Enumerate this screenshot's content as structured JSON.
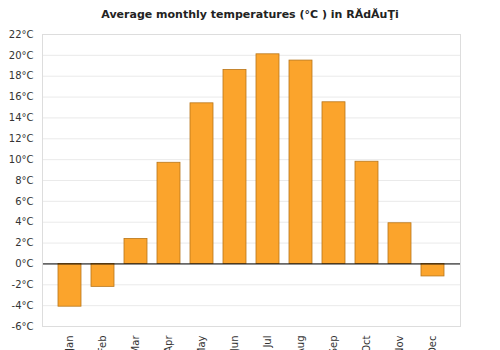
{
  "chart_data": {
    "type": "bar",
    "title": "Average monthly temperatures (°C ) in RĂdĂuŢi",
    "categories": [
      "Jan",
      "Feb",
      "Mar",
      "Apr",
      "May",
      "Jun",
      "Jul",
      "Aug",
      "Sep",
      "Oct",
      "Nov",
      "Dec"
    ],
    "values": [
      -4.1,
      -2.2,
      2.4,
      9.7,
      15.4,
      18.6,
      20.1,
      19.5,
      15.5,
      9.8,
      3.9,
      -1.2
    ],
    "color": "#fba42c",
    "ylim": [
      -6,
      22
    ],
    "yticks": [
      {
        "value": -6,
        "label": "-6°C"
      },
      {
        "value": -4,
        "label": "-4°C"
      },
      {
        "value": -2,
        "label": "-2°C"
      },
      {
        "value": 0,
        "label": "0°C"
      },
      {
        "value": 2,
        "label": "2°C"
      },
      {
        "value": 4,
        "label": "4°C"
      },
      {
        "value": 6,
        "label": "6°C"
      },
      {
        "value": 8,
        "label": "8°C"
      },
      {
        "value": 10,
        "label": "10°C"
      },
      {
        "value": 12,
        "label": "12°C"
      },
      {
        "value": 14,
        "label": "14°C"
      },
      {
        "value": 16,
        "label": "16°C"
      },
      {
        "value": 18,
        "label": "18°C"
      },
      {
        "value": 20,
        "label": "20°C"
      },
      {
        "value": 22,
        "label": "22°C"
      }
    ],
    "grid": true
  }
}
